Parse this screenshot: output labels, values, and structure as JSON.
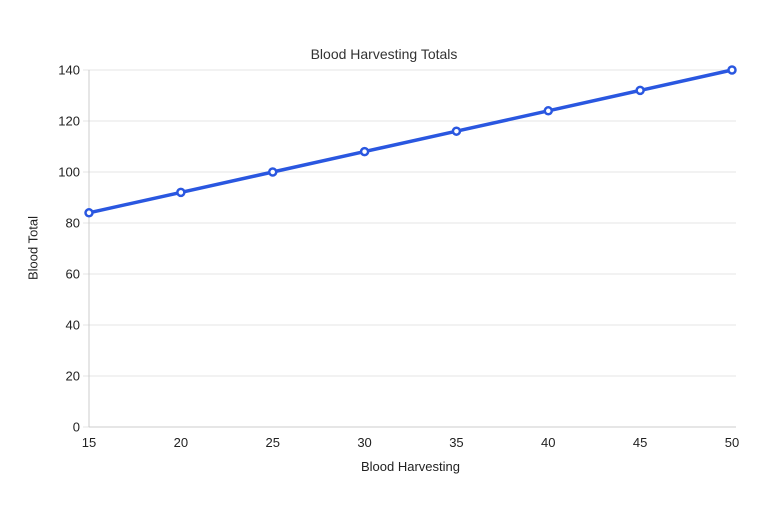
{
  "chart_data": {
    "type": "line",
    "title": "Blood Harvesting Totals",
    "xlabel": "Blood Harvesting",
    "ylabel": "Blood Total",
    "x": [
      15,
      20,
      25,
      30,
      35,
      40,
      45,
      50
    ],
    "series": [
      {
        "values": [
          84,
          92,
          100,
          108,
          116,
          124,
          132,
          140
        ],
        "color": "#2a57e0",
        "marker": "open-circle",
        "marker_fill": "#ffffff"
      }
    ],
    "x_ticks": [
      "15",
      "20",
      "25",
      "30",
      "35",
      "40",
      "45",
      "50"
    ],
    "y_ticks": [
      "0",
      "20",
      "40",
      "60",
      "80",
      "100",
      "120",
      "140"
    ],
    "xlim": [
      15,
      50
    ],
    "ylim": [
      0,
      140
    ],
    "grid": "horizontal",
    "legend": "none",
    "colors": {
      "background": "#ffffff",
      "gridline": "#e6e6e6",
      "axis_line": "#cccccc",
      "tick_text": "#222222",
      "title_text": "#333333"
    }
  }
}
